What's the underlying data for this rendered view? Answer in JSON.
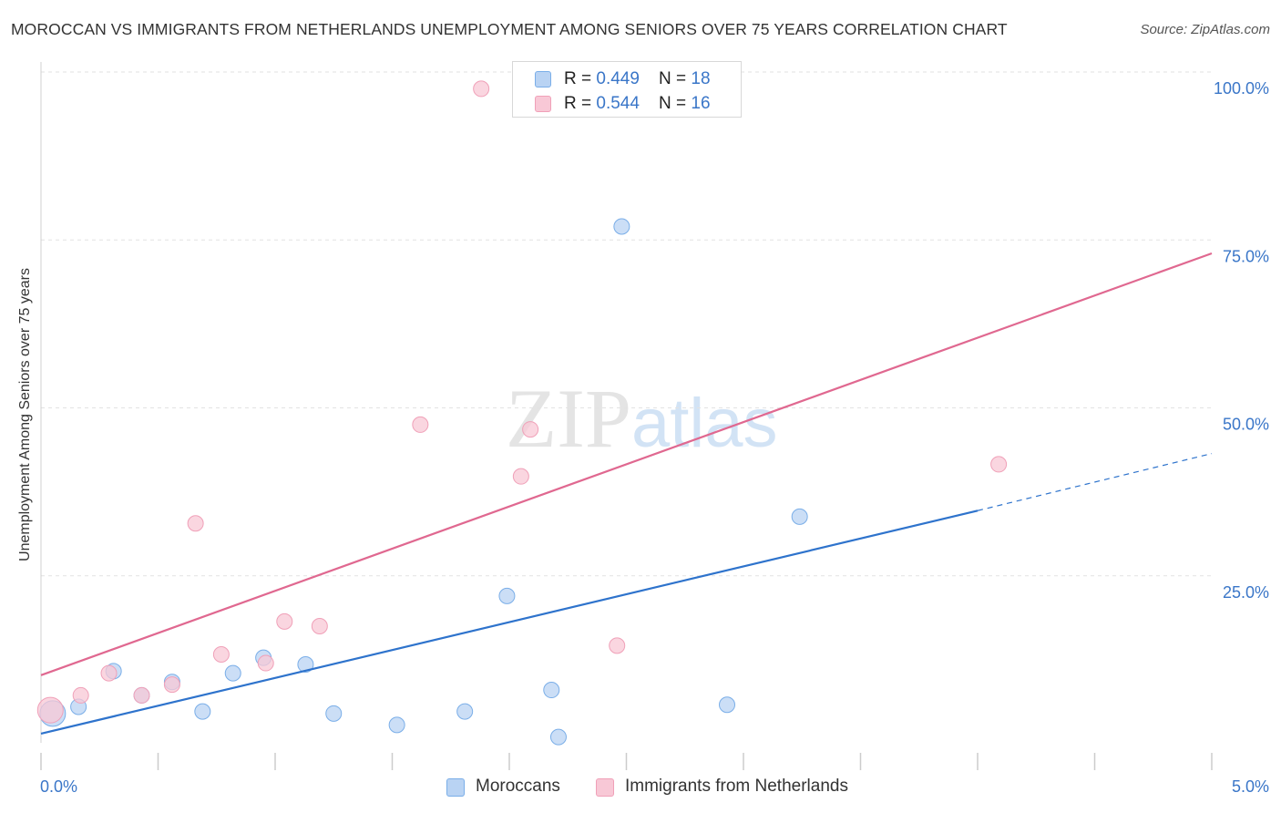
{
  "chart_data": {
    "type": "scatter",
    "title": "MOROCCAN VS IMMIGRANTS FROM NETHERLANDS UNEMPLOYMENT AMONG SENIORS OVER 75 YEARS CORRELATION CHART",
    "source": "Source: ZipAtlas.com",
    "xlabel": "",
    "ylabel": "Unemployment Among Seniors over 75 years",
    "xlim": [
      0,
      5
    ],
    "ylim": [
      0,
      100
    ],
    "x_tick_labels": [
      "0.0%",
      "5.0%"
    ],
    "y_tick_labels": [
      "25.0%",
      "50.0%",
      "75.0%",
      "100.0%"
    ],
    "y_ticks": [
      25,
      50,
      75,
      100
    ],
    "grid": true,
    "watermark": "ZIPatlas",
    "series": [
      {
        "name": "Moroccans",
        "color": "#7aaee8",
        "fill": "#b9d3f3",
        "line_color": "#2e73cc",
        "R": "0.449",
        "N": "18",
        "points": [
          {
            "x": 0.05,
            "y": 4.5,
            "size": "large"
          },
          {
            "x": 0.16,
            "y": 5.5
          },
          {
            "x": 0.31,
            "y": 10.8
          },
          {
            "x": 0.43,
            "y": 7.2
          },
          {
            "x": 0.56,
            "y": 9.2
          },
          {
            "x": 0.69,
            "y": 4.8
          },
          {
            "x": 0.82,
            "y": 10.5
          },
          {
            "x": 0.95,
            "y": 12.8
          },
          {
            "x": 1.13,
            "y": 11.8
          },
          {
            "x": 1.25,
            "y": 4.5
          },
          {
            "x": 1.52,
            "y": 2.8
          },
          {
            "x": 1.81,
            "y": 4.8
          },
          {
            "x": 1.99,
            "y": 22.0
          },
          {
            "x": 2.18,
            "y": 8.0
          },
          {
            "x": 2.21,
            "y": 1.0
          },
          {
            "x": 2.48,
            "y": 77.0
          },
          {
            "x": 2.93,
            "y": 5.8
          },
          {
            "x": 3.24,
            "y": 33.8
          }
        ],
        "trend": {
          "x_start": 0,
          "y_start": 1.5,
          "x_solid_end": 4.0,
          "y_solid_end": 34.7,
          "x_end": 5.0,
          "y_end": 43.2
        }
      },
      {
        "name": "Immigrants from Netherlands",
        "color": "#f0a0b8",
        "fill": "#f8c8d6",
        "line_color": "#e06890",
        "R": "0.544",
        "N": "16",
        "points": [
          {
            "x": 0.04,
            "y": 5.0,
            "size": "large"
          },
          {
            "x": 0.17,
            "y": 7.2
          },
          {
            "x": 0.29,
            "y": 10.5
          },
          {
            "x": 0.43,
            "y": 7.2
          },
          {
            "x": 0.56,
            "y": 8.8
          },
          {
            "x": 0.66,
            "y": 32.8
          },
          {
            "x": 0.77,
            "y": 13.3
          },
          {
            "x": 0.96,
            "y": 12.0
          },
          {
            "x": 1.04,
            "y": 18.2
          },
          {
            "x": 1.19,
            "y": 17.5
          },
          {
            "x": 1.62,
            "y": 47.5
          },
          {
            "x": 1.88,
            "y": 97.5
          },
          {
            "x": 2.05,
            "y": 39.8
          },
          {
            "x": 2.09,
            "y": 46.8
          },
          {
            "x": 2.46,
            "y": 14.6
          },
          {
            "x": 4.09,
            "y": 41.6
          }
        ],
        "trend": {
          "x_start": 0,
          "y_start": 10.2,
          "x_end": 5.0,
          "y_end": 73.0
        }
      }
    ]
  }
}
